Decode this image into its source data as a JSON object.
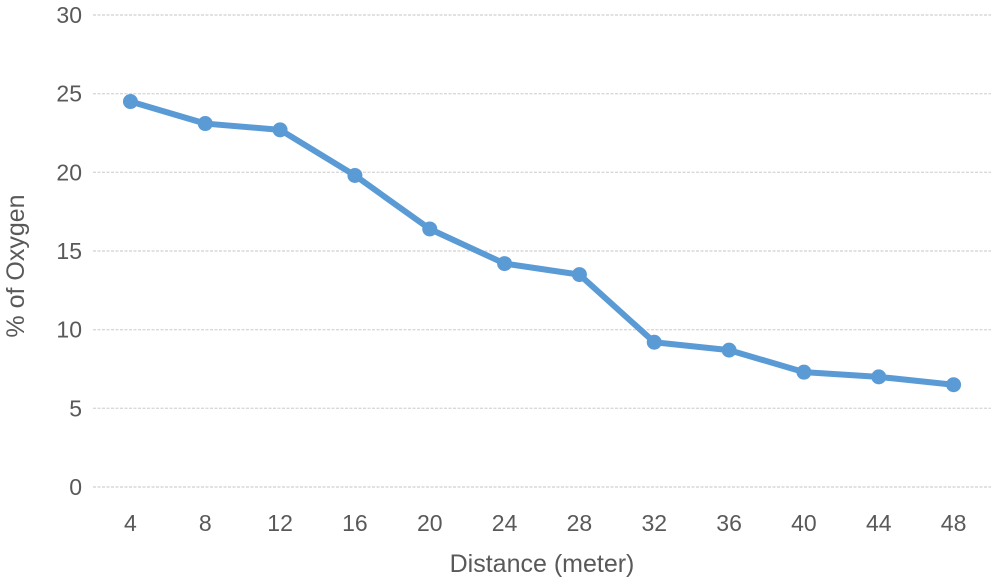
{
  "chart_data": {
    "type": "line",
    "title": "",
    "xlabel": "Distance (meter)",
    "ylabel": "% of Oxygen",
    "x": [
      4,
      8,
      12,
      16,
      20,
      24,
      28,
      32,
      36,
      40,
      44,
      48
    ],
    "series": [
      {
        "name": "% of Oxygen",
        "values": [
          24.5,
          23.1,
          22.7,
          19.8,
          16.4,
          14.2,
          13.5,
          9.2,
          8.7,
          7.3,
          7.0,
          6.5
        ]
      }
    ],
    "ylim": [
      0,
      30
    ],
    "yticks": [
      0,
      5,
      10,
      15,
      20,
      25,
      30
    ],
    "grid": "horizontal-only",
    "legend_position": "none",
    "line_color": "#5B9BD5",
    "marker": "circle",
    "marker_color": "#5B9BD5",
    "gridline_color": "#D9D9D9",
    "label_color": "#595959",
    "background_color": "#FFFFFF"
  }
}
